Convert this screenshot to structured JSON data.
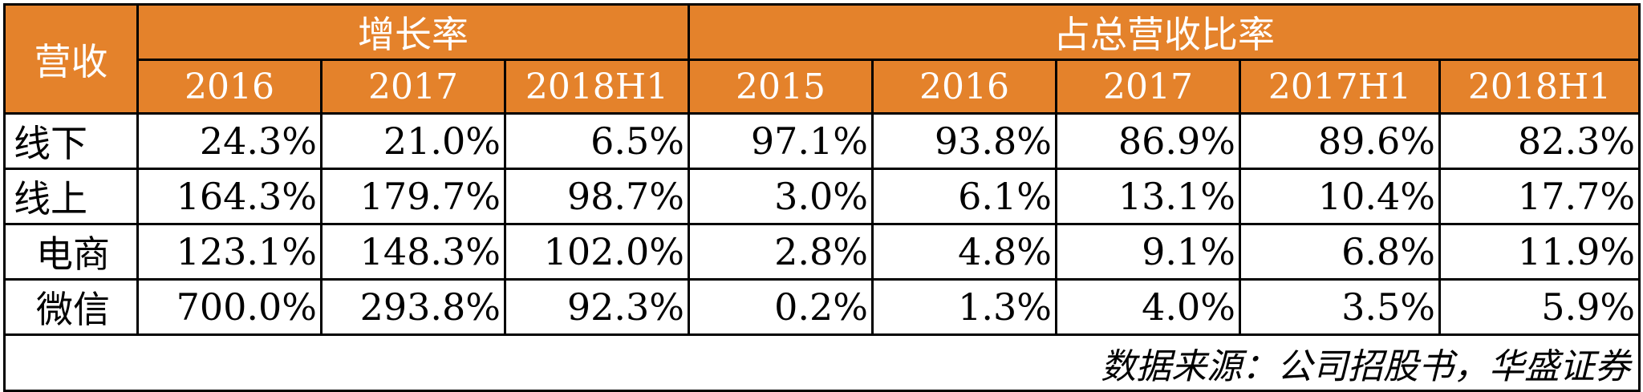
{
  "table": {
    "corner_header": "营收",
    "group_headers": [
      "增长率",
      "占总营收比率"
    ],
    "sub_headers": [
      "2016",
      "2017",
      "2018H1",
      "2015",
      "2016",
      "2017",
      "2017H1",
      "2018H1"
    ],
    "rows": [
      {
        "label": "线下",
        "indent": false,
        "values": [
          "24.3%",
          "21.0%",
          "6.5%",
          "97.1%",
          "93.8%",
          "86.9%",
          "89.6%",
          "82.3%"
        ]
      },
      {
        "label": "线上",
        "indent": false,
        "values": [
          "164.3%",
          "179.7%",
          "98.7%",
          "3.0%",
          "6.1%",
          "13.1%",
          "10.4%",
          "17.7%"
        ]
      },
      {
        "label": "电商",
        "indent": true,
        "values": [
          "123.1%",
          "148.3%",
          "102.0%",
          "2.8%",
          "4.8%",
          "9.1%",
          "6.8%",
          "11.9%"
        ]
      },
      {
        "label": "微信",
        "indent": true,
        "values": [
          "700.0%",
          "293.8%",
          "92.3%",
          "0.2%",
          "1.3%",
          "4.0%",
          "3.5%",
          "5.9%"
        ]
      }
    ],
    "source_note": "数据来源：公司招股书，华盛证券"
  },
  "colors": {
    "header_bg": "#E4822B",
    "header_text": "#FFFFFF",
    "border": "#000000"
  }
}
